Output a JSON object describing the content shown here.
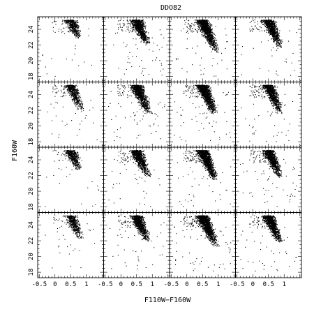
{
  "chart_data": {
    "type": "scatter",
    "title": "DDO82",
    "xlabel": "F110W−F160W",
    "ylabel": "F160W",
    "grid": false,
    "panel_rows": 4,
    "panel_cols": 4,
    "xlim": [
      -0.55,
      1.55
    ],
    "ylim": [
      25.6,
      17.3
    ],
    "x_ticks": [
      -0.5,
      0,
      0.5,
      1
    ],
    "x_tick_labels": [
      "-0.5",
      "0",
      "0.5",
      "1"
    ],
    "y_ticks": [
      18,
      20,
      22,
      24
    ],
    "y_tick_labels": [
      "18",
      "20",
      "22",
      "24"
    ],
    "x_minor_step": 0.1,
    "y_minor_step": 0.5,
    "sequence_shape": {
      "color_at_24_6": 0.55,
      "color_at_21": 0.95,
      "tip_magnitude": [
        22.8,
        22.0,
        21.0,
        21.6,
        21.8,
        21.5,
        21.4,
        21.5,
        22.6,
        21.7,
        21.4,
        21.6,
        22.2,
        21.8,
        21.2,
        21.7
      ],
      "faint_limit": 25.2
    },
    "points_per_panel": [
      520,
      1100,
      1300,
      1000,
      620,
      1050,
      1300,
      1050,
      520,
      1000,
      1350,
      1050,
      540,
      1000,
      1400,
      1100
    ]
  }
}
